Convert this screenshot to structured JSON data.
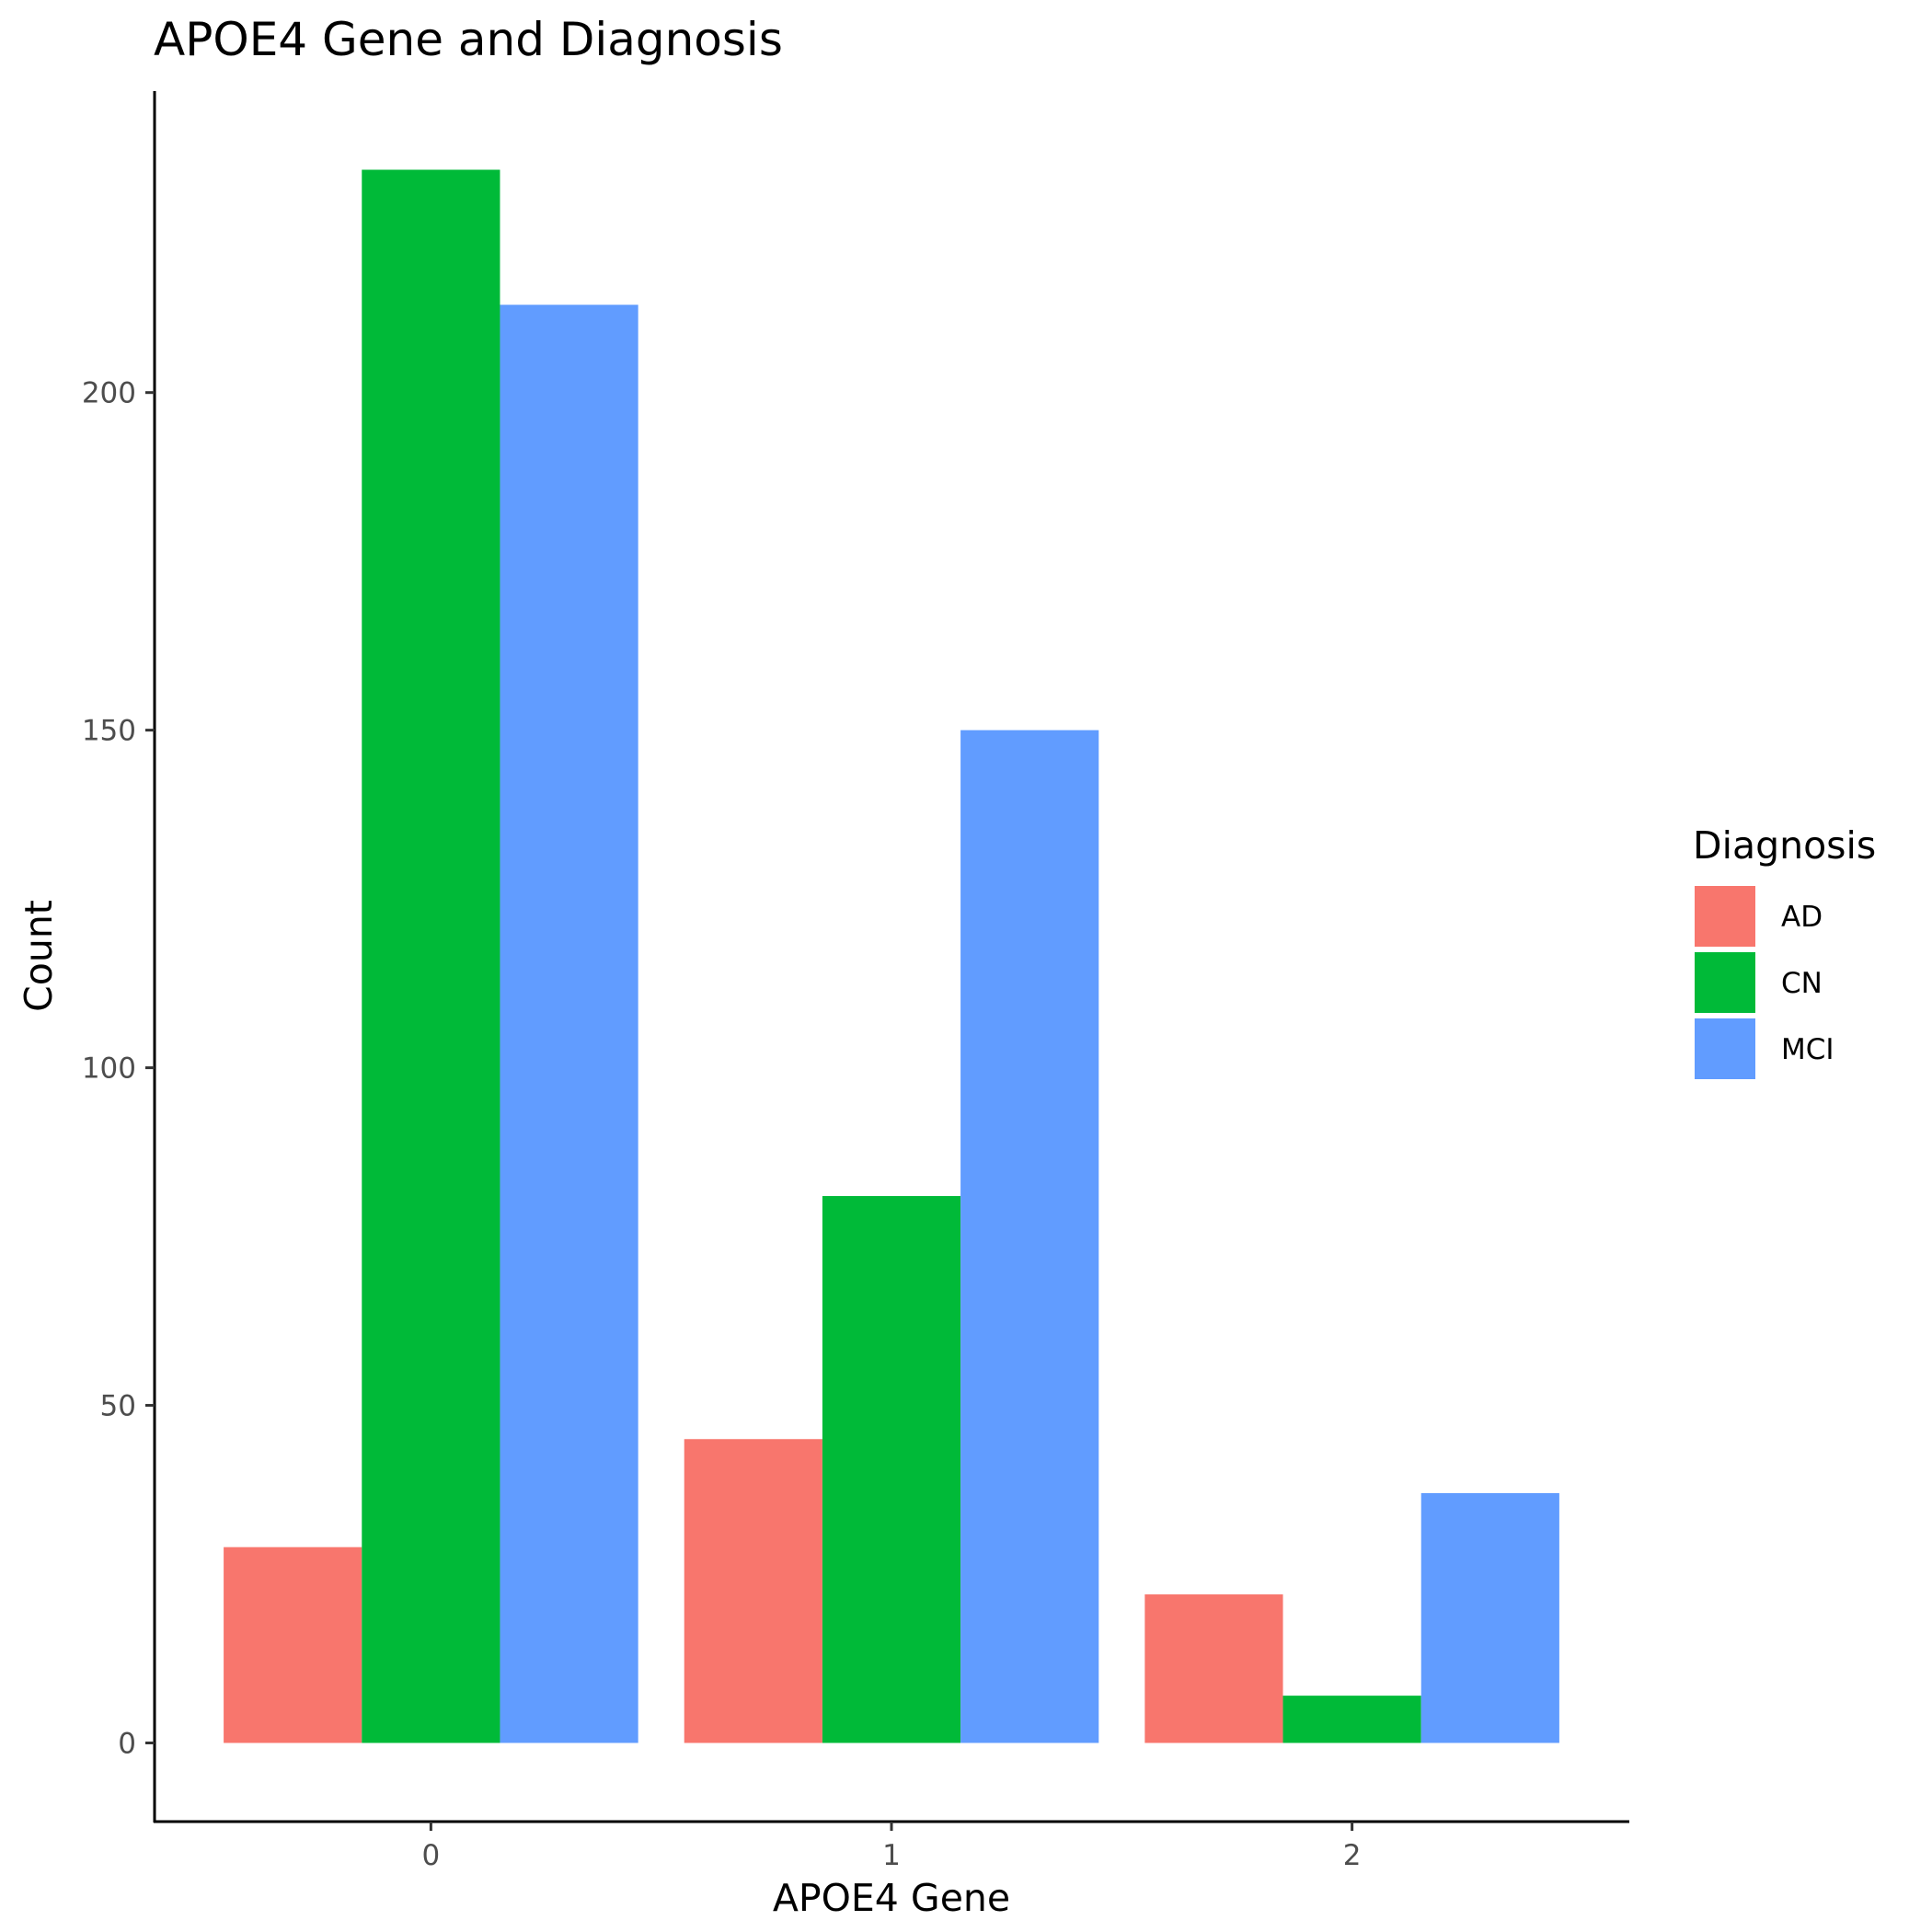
{
  "chart_data": {
    "type": "bar",
    "title": "APOE4 Gene and Diagnosis",
    "xlabel": "APOE4 Gene",
    "ylabel": "Count",
    "categories": [
      "0",
      "1",
      "2"
    ],
    "series": [
      {
        "name": "AD",
        "values": [
          29,
          45,
          22
        ],
        "color": "#F8766D"
      },
      {
        "name": "CN",
        "values": [
          233,
          81,
          7
        ],
        "color": "#00BA38"
      },
      {
        "name": "MCI",
        "values": [
          213,
          150,
          37
        ],
        "color": "#619CFF"
      }
    ],
    "yticks": [
      0,
      50,
      100,
      150,
      200
    ],
    "ylim": [
      -11.65,
      244.65
    ],
    "grid": false,
    "legend": {
      "title": "Diagnosis",
      "position": "right"
    }
  }
}
